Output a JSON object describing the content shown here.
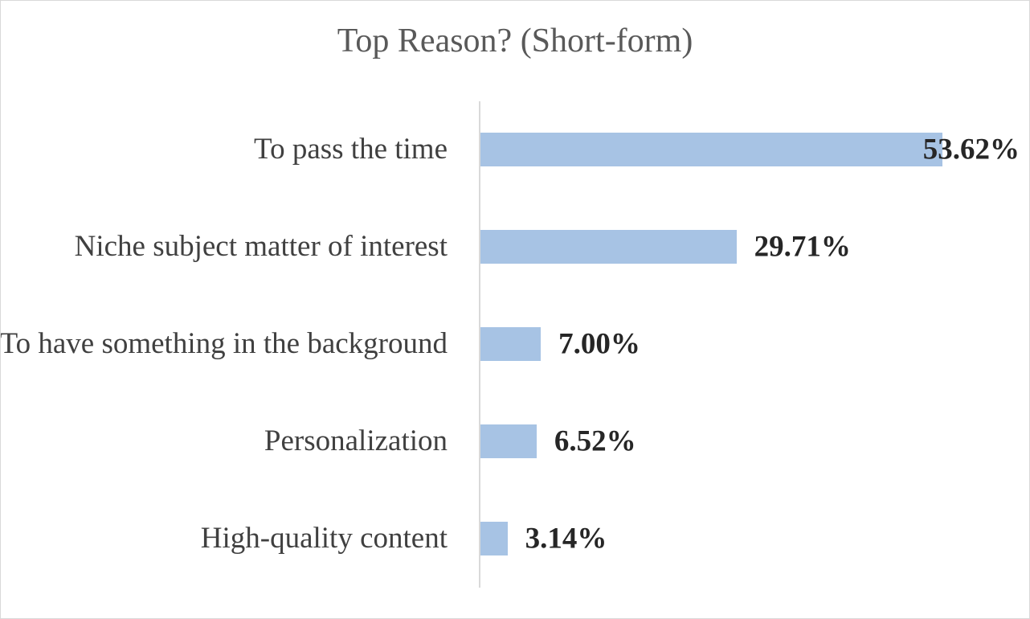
{
  "chart_data": {
    "type": "bar",
    "orientation": "horizontal",
    "title": "Top Reason? (Short-form)",
    "categories": [
      "To pass the time",
      "Niche subject matter of interest",
      "To have something in the background",
      "Personalization",
      "High-quality content"
    ],
    "values": [
      53.62,
      29.71,
      7.0,
      6.52,
      3.14
    ],
    "value_labels": [
      "53.62%",
      "29.71%",
      "7.00%",
      "6.52%",
      "3.14%"
    ],
    "color": "#a7c3e4"
  }
}
